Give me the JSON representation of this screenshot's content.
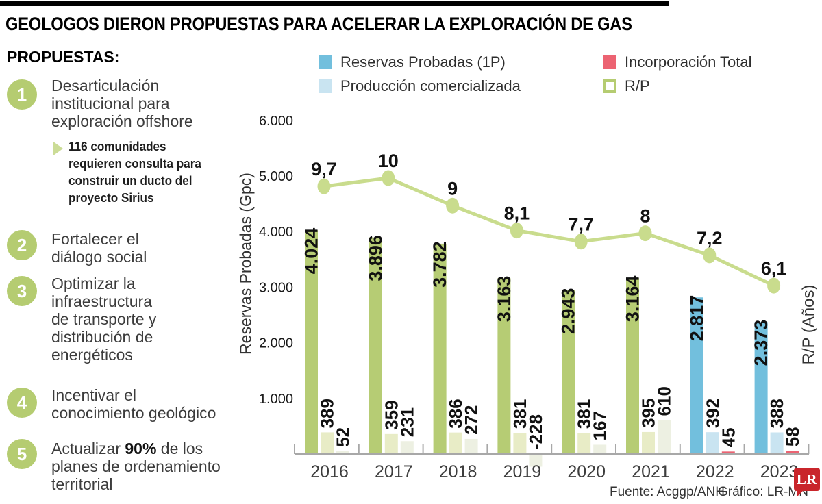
{
  "header": {
    "title": "GEOLOGOS DIERON PROPUESTAS PARA ACELERAR LA EXPLORACIÓN DE GAS"
  },
  "proposals": {
    "heading": "PROPUESTAS:",
    "items": [
      {
        "number": "1",
        "lines": [
          "Desarticulación",
          "institucional para",
          "exploración offshore"
        ],
        "sub_lines": [
          "116 comunidades",
          "requieren consulta para",
          "construir un ducto del",
          "proyecto Sirius"
        ]
      },
      {
        "number": "2",
        "lines": [
          "Fortalecer el",
          "diálogo social"
        ]
      },
      {
        "number": "3",
        "lines": [
          "Optimizar la",
          "infraestructura",
          "de transporte y",
          "distribución de",
          "energéticos"
        ]
      },
      {
        "number": "4",
        "lines": [
          "Incentivar el",
          "conocimiento geológico"
        ]
      },
      {
        "number": "5",
        "lines": [
          "Actualizar 90% de los",
          "planes de ordenamiento",
          "territorial"
        ],
        "bold_token": "90%"
      }
    ],
    "badge_color": "#b5cc71"
  },
  "legend": {
    "items": [
      {
        "label": "Reservas Probadas (1P)",
        "swatch": "#72bfdd",
        "outline": false
      },
      {
        "label": "Producción comercializada",
        "swatch": "#c9e4f1",
        "outline": false
      },
      {
        "label": "Incorporación Total",
        "swatch": "#ec6372",
        "outline": false
      },
      {
        "label": "R/P",
        "swatch": "#ffffff",
        "outline": true,
        "outline_color": "#b5cc71"
      }
    ]
  },
  "chart_data": {
    "type": "bar",
    "title": "",
    "left_axis_title": "Reservas Probadas (Gpc)",
    "right_axis_title": "R/P (Años)",
    "y_ticks": [
      {
        "value": 6000,
        "label": "6.000"
      },
      {
        "value": 5000,
        "label": "5.000"
      },
      {
        "value": 4000,
        "label": "4.000"
      },
      {
        "value": 3000,
        "label": "3.000"
      },
      {
        "value": 2000,
        "label": "2.000"
      },
      {
        "value": 1000,
        "label": "1.000"
      }
    ],
    "ylim": [
      0,
      6200
    ],
    "right_ylim": [
      0,
      12.5
    ],
    "grid": false,
    "legend_position": "top",
    "series_names": [
      "Reservas Probadas (1P)",
      "Producción comercializada",
      "Incorporación Total",
      "R/P"
    ],
    "years": [
      {
        "year": "2016",
        "reservas": 4024,
        "reservas_label": "4.024",
        "produccion": 389,
        "produccion_label": "389",
        "incorporacion": 52,
        "incorporacion_label": "52",
        "rp": 9.7,
        "rp_label": "9,7",
        "era": "past"
      },
      {
        "year": "2017",
        "reservas": 3896,
        "reservas_label": "3.896",
        "produccion": 359,
        "produccion_label": "359",
        "incorporacion": 231,
        "incorporacion_label": "231",
        "rp": 10,
        "rp_label": "10",
        "era": "past"
      },
      {
        "year": "2018",
        "reservas": 3782,
        "reservas_label": "3.782",
        "produccion": 386,
        "produccion_label": "386",
        "incorporacion": 272,
        "incorporacion_label": "272",
        "rp": 9,
        "rp_label": "9",
        "era": "past"
      },
      {
        "year": "2019",
        "reservas": 3163,
        "reservas_label": "3.163",
        "produccion": 381,
        "produccion_label": "381",
        "incorporacion": -228,
        "incorporacion_label": "-228",
        "rp": 8.1,
        "rp_label": "8,1",
        "era": "past"
      },
      {
        "year": "2020",
        "reservas": 2943,
        "reservas_label": "2.943",
        "produccion": 381,
        "produccion_label": "381",
        "incorporacion": 167,
        "incorporacion_label": "167",
        "rp": 7.7,
        "rp_label": "7,7",
        "era": "past"
      },
      {
        "year": "2021",
        "reservas": 3164,
        "reservas_label": "3.164",
        "produccion": 395,
        "produccion_label": "395",
        "incorporacion": 610,
        "incorporacion_label": "610",
        "rp": 8,
        "rp_label": "8",
        "era": "past"
      },
      {
        "year": "2022",
        "reservas": 2817,
        "reservas_label": "2.817",
        "produccion": 392,
        "produccion_label": "392",
        "incorporacion": 45,
        "incorporacion_label": "45",
        "rp": 7.2,
        "rp_label": "7,2",
        "era": "recent"
      },
      {
        "year": "2023",
        "reservas": 2373,
        "reservas_label": "2.373",
        "produccion": 388,
        "produccion_label": "388",
        "incorporacion": 58,
        "incorporacion_label": "58",
        "rp": 6.1,
        "rp_label": "6,1",
        "era": "recent"
      }
    ],
    "colors": {
      "past": {
        "reservas": "#b6cc74",
        "produccion": "#e8ecc6",
        "incorporacion": "#edf0e2"
      },
      "recent": {
        "reservas": "#72bfdd",
        "produccion": "#c9e4f1",
        "incorporacion": "#ec6372"
      },
      "rp_line": "#c9dc8d",
      "axis": "#a8a8a8",
      "label": "#111111",
      "tick_label": "#1a1a1a",
      "year_label": "#3d3d3d"
    }
  },
  "footer": {
    "source": "Fuente: Acggp/ANH",
    "credit": "Gráfico: LR-MN",
    "logo_text": "LR",
    "logo_color": "#c9252b"
  }
}
